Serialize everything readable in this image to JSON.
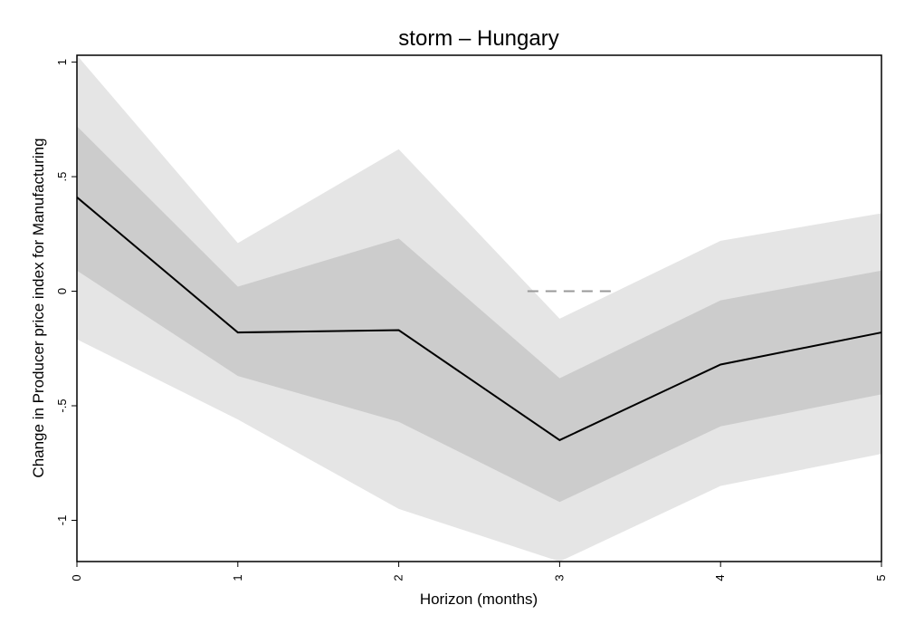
{
  "chart_data": {
    "type": "line",
    "title": "storm – Hungary",
    "xlabel": "Horizon (months)",
    "ylabel": "Change in Producer price index for Manufacturing",
    "x": [
      0,
      1,
      2,
      3,
      4,
      5
    ],
    "x_ticks": [
      "0",
      "1",
      "2",
      "3",
      "4",
      "5"
    ],
    "y_ticks": [
      {
        "value": 1,
        "label": "1"
      },
      {
        "value": 0.5,
        "label": ".5"
      },
      {
        "value": 0,
        "label": "0"
      },
      {
        "value": -0.5,
        "label": "-.5"
      },
      {
        "value": -1,
        "label": "-1"
      }
    ],
    "xlim": [
      0,
      5
    ],
    "ylim": [
      -1.18,
      1.03
    ],
    "series": [
      {
        "role": "estimate",
        "values": [
          0.41,
          -0.18,
          -0.17,
          -0.65,
          -0.32,
          -0.18
        ]
      },
      {
        "role": "inner_band_upper",
        "values": [
          0.72,
          0.02,
          0.23,
          -0.38,
          -0.04,
          0.09
        ]
      },
      {
        "role": "inner_band_lower",
        "values": [
          0.09,
          -0.37,
          -0.57,
          -0.92,
          -0.59,
          -0.45
        ]
      },
      {
        "role": "outer_band_upper",
        "values": [
          1.03,
          0.21,
          0.62,
          -0.12,
          0.22,
          0.34
        ]
      },
      {
        "role": "outer_band_lower",
        "values": [
          -0.21,
          -0.56,
          -0.95,
          -1.18,
          -0.85,
          -0.71
        ]
      }
    ],
    "zero_line": {
      "y": 0,
      "style": "dashed",
      "x_range": [
        2.8,
        3.35
      ]
    },
    "grid": false,
    "colors": {
      "outer_band": "#e5e5e5",
      "inner_band": "#cccccc",
      "estimate": "#000000",
      "zero_line": "#999999",
      "frame": "#000000"
    }
  }
}
